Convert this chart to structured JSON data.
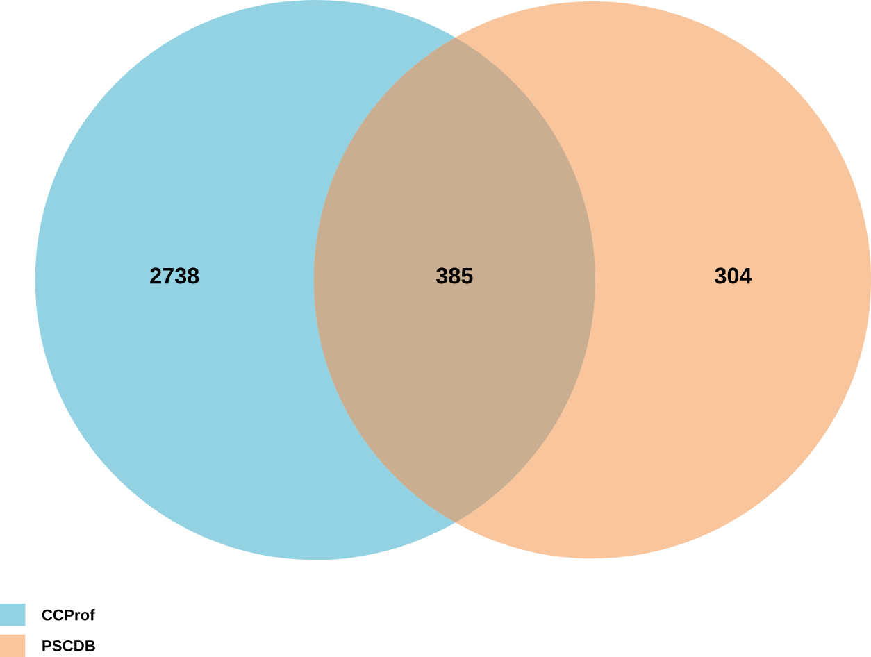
{
  "chart_data": {
    "type": "other",
    "categories": [
      null,
      null,
      null
    ],
    "values": [
      2738,
      385,
      304
    ],
    "colors": [
      "#92d2e2",
      "#c9ae91",
      "#f8c59c"
    ],
    "data_labels": true,
    "annotations": [
      "CCProf",
      "PSCDB"
    ]
  }
}
